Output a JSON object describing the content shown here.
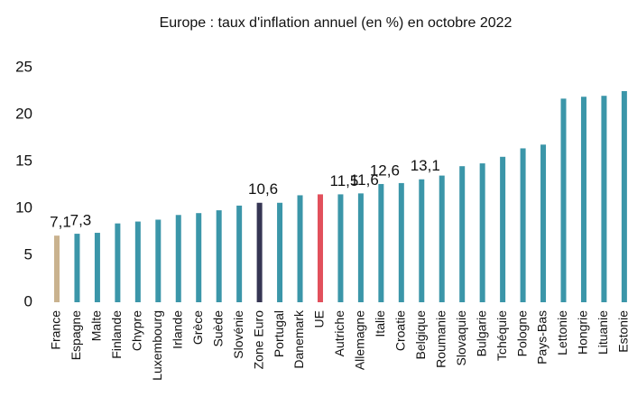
{
  "chart_data": {
    "type": "bar",
    "title": "Europe : taux d'inflation annuel (en %) en octobre 2022",
    "categories": [
      "France",
      "Espagne",
      "Malte",
      "Finlande",
      "Chypre",
      "Luxembourg",
      "Irlande",
      "Grèce",
      "Suède",
      "Slovénie",
      "Zone Euro",
      "Portugal",
      "Danemark",
      "UE",
      "Autriche",
      "Allemagne",
      "Italie",
      "Croatie",
      "Belgique",
      "Roumanie",
      "Slovaquie",
      "Bulgarie",
      "Tchéquie",
      "Pologne",
      "Pays-Bas",
      "Lettonie",
      "Hongrie",
      "Lituanie",
      "Estonie"
    ],
    "values": [
      7.1,
      7.3,
      7.4,
      8.4,
      8.6,
      8.8,
      9.3,
      9.5,
      9.8,
      10.3,
      10.6,
      10.6,
      11.4,
      11.5,
      11.5,
      11.6,
      12.6,
      12.7,
      13.1,
      13.5,
      14.5,
      14.8,
      15.5,
      16.4,
      16.8,
      21.7,
      21.9,
      22.0,
      22.5
    ],
    "value_labels": [
      "7,1",
      "7,3",
      null,
      null,
      null,
      null,
      null,
      null,
      null,
      null,
      "10,6",
      null,
      null,
      null,
      "11,5",
      "11,6",
      "12,6",
      null,
      "13,1",
      null,
      null,
      null,
      null,
      null,
      null,
      null,
      null,
      null,
      null
    ],
    "colors": [
      "#c9b28e",
      "#3b96a9",
      "#3b96a9",
      "#3b96a9",
      "#3b96a9",
      "#3b96a9",
      "#3b96a9",
      "#3b96a9",
      "#3b96a9",
      "#3b96a9",
      "#363654",
      "#3b96a9",
      "#3b96a9",
      "#e2505c",
      "#3b96a9",
      "#3b96a9",
      "#3b96a9",
      "#3b96a9",
      "#3b96a9",
      "#3b96a9",
      "#3b96a9",
      "#3b96a9",
      "#3b96a9",
      "#3b96a9",
      "#3b96a9",
      "#3b96a9",
      "#3b96a9",
      "#3b96a9",
      "#3b96a9"
    ],
    "ylim": [
      0,
      25
    ],
    "yticks": [
      0,
      5,
      10,
      15,
      20,
      25
    ],
    "grid": false
  }
}
